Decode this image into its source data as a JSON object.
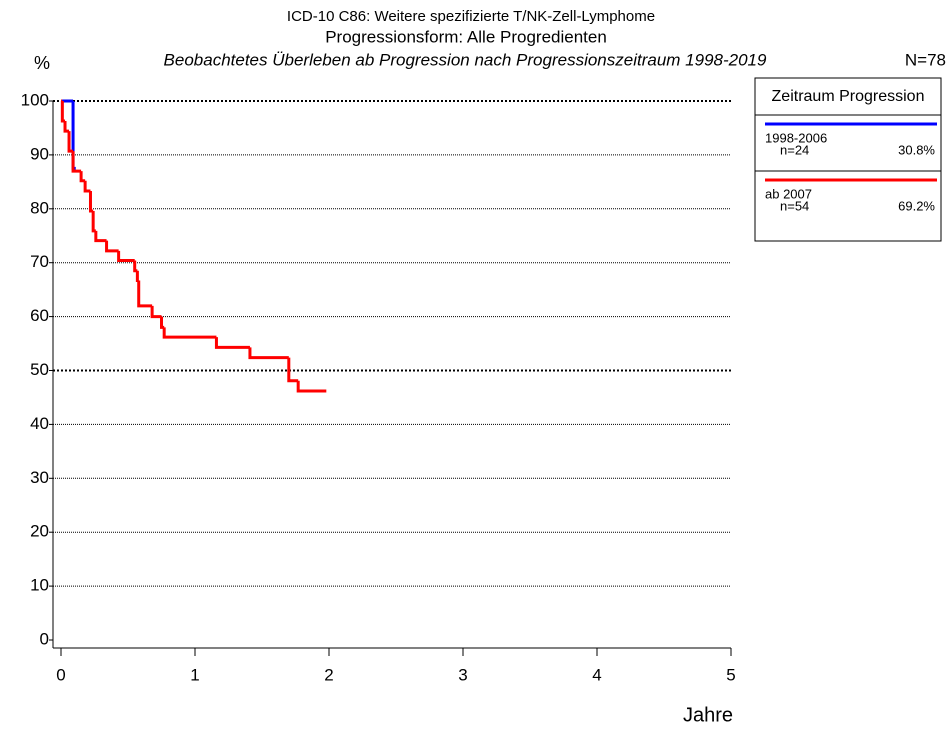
{
  "chart_data": {
    "type": "step",
    "title": "ICD-10 C86: Weitere spezifizierte T/NK-Zell-Lymphome",
    "subtitle": "Progressionsform: Alle Progredienten",
    "caption": "Beobachtetes Überleben ab Progression nach Progressionszeitraum 1998-2019",
    "total": "N=78",
    "y_label": "%",
    "x_label": "Jahre",
    "xlim": [
      0,
      5
    ],
    "xticks": [
      0,
      1,
      2,
      3,
      4,
      5
    ],
    "ylim": [
      0,
      100
    ],
    "yticks": [
      0,
      10,
      20,
      30,
      40,
      50,
      60,
      70,
      80,
      90,
      100
    ],
    "grid": true,
    "legend_title": "Zeitraum Progression",
    "series": [
      {
        "name": "1998-2006",
        "color": "#0000ff",
        "n": {
          "value": 24,
          "label": "n=24"
        },
        "share": {
          "value": 30.8,
          "label": "30.8%"
        },
        "x": [
          0,
          0.09,
          0.11
        ],
        "values": [
          100,
          87.5,
          87.5
        ]
      },
      {
        "name": "ab 2007",
        "color": "#ff0000",
        "n": {
          "value": 54,
          "label": "n=54"
        },
        "share": {
          "value": 69.2,
          "label": "69.2%"
        },
        "x": [
          0,
          0.01,
          0.03,
          0.06,
          0.09,
          0.15,
          0.18,
          0.22,
          0.24,
          0.26,
          0.34,
          0.43,
          0.55,
          0.57,
          0.58,
          0.68,
          0.75,
          0.77,
          1.16,
          1.41,
          1.7,
          1.77,
          1.98
        ],
        "values": [
          100,
          96.3,
          94.4,
          90.7,
          87.0,
          85.2,
          83.3,
          79.6,
          75.9,
          74.1,
          72.2,
          70.4,
          68.5,
          66.7,
          62.0,
          60.0,
          58.0,
          56.2,
          54.3,
          52.4,
          48.1,
          46.2,
          46.2
        ]
      }
    ]
  }
}
